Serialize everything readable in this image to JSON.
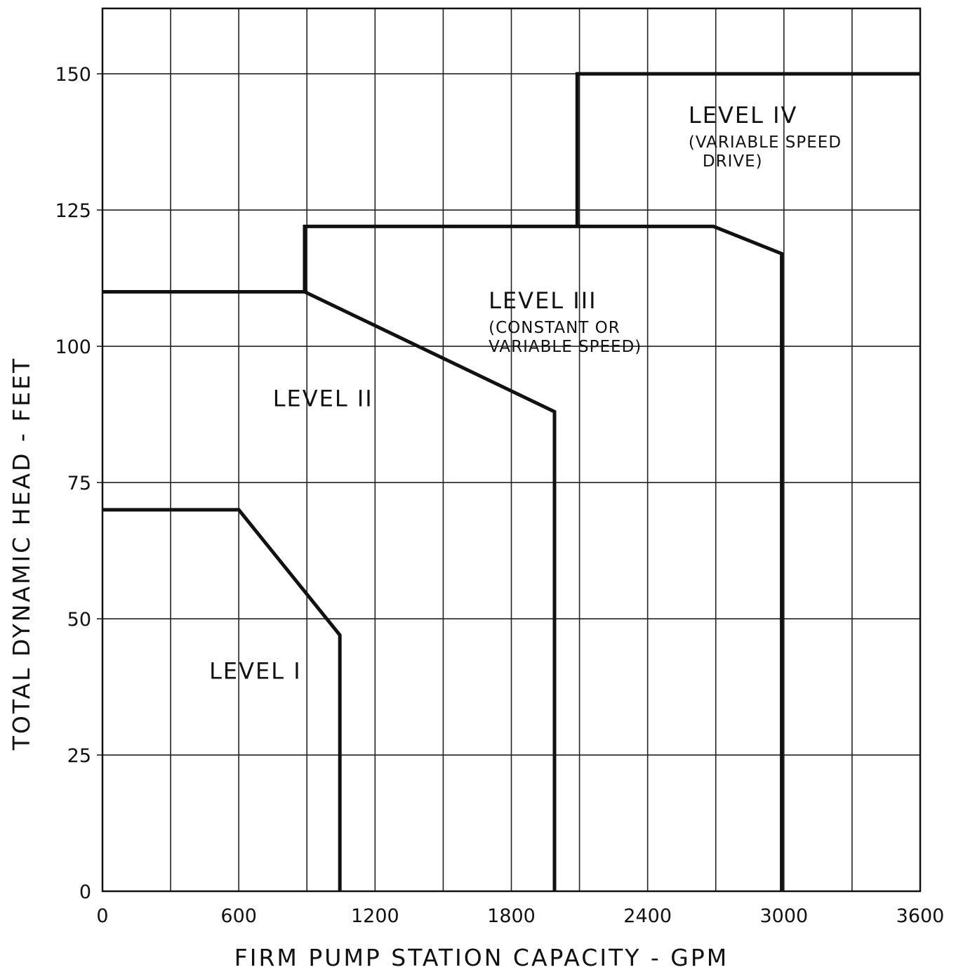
{
  "chart_data": {
    "type": "line",
    "title": "",
    "xlabel": "FIRM  PUMP  STATION  CAPACITY - GPM",
    "ylabel": "TOTAL  DYNAMIC  HEAD  -  FEET",
    "xlim": [
      0,
      3600
    ],
    "ylim": [
      0,
      162
    ],
    "x_ticks": [
      0,
      600,
      1200,
      1800,
      2400,
      3000,
      3600
    ],
    "x_tick_labels": [
      "0",
      "600",
      "1200",
      "1800",
      "2400",
      "3000",
      "3600"
    ],
    "y_ticks": [
      0,
      25,
      50,
      75,
      100,
      125,
      150
    ],
    "y_tick_labels": [
      "0",
      "25",
      "50",
      "75",
      "100",
      "125",
      "150"
    ],
    "x_grid_step": 300,
    "y_grid_step": 25,
    "grid": true,
    "legend": "none",
    "series": [
      {
        "name": "LEVEL I",
        "points": [
          [
            0,
            70
          ],
          [
            600,
            70
          ],
          [
            1045,
            47
          ],
          [
            1045,
            0
          ]
        ]
      },
      {
        "name": "LEVEL II",
        "points": [
          [
            0,
            110
          ],
          [
            890,
            110
          ],
          [
            1990,
            88
          ],
          [
            1990,
            0
          ]
        ]
      },
      {
        "name": "LEVEL III",
        "points": [
          [
            890,
            110
          ],
          [
            890,
            122
          ],
          [
            2690,
            122
          ],
          [
            2990,
            117
          ],
          [
            2990,
            0
          ]
        ]
      },
      {
        "name": "LEVEL IV",
        "points": [
          [
            2090,
            122
          ],
          [
            2090,
            150
          ],
          [
            3600,
            150
          ]
        ]
      }
    ],
    "annotations": [
      {
        "id": "level1",
        "lines": [
          "LEVEL  I"
        ],
        "x": 470,
        "y": 39
      },
      {
        "id": "level2",
        "lines": [
          "LEVEL  II"
        ],
        "x": 750,
        "y": 89
      },
      {
        "id": "level3",
        "lines": [
          "LEVEL  III",
          "(CONSTANT  OR",
          "VARIABLE  SPEED)"
        ],
        "x": 1700,
        "y": 107
      },
      {
        "id": "level4",
        "lines": [
          "LEVEL  IV",
          "(VARIABLE  SPEED",
          "DRIVE)"
        ],
        "x": 2580,
        "y": 141
      }
    ]
  }
}
